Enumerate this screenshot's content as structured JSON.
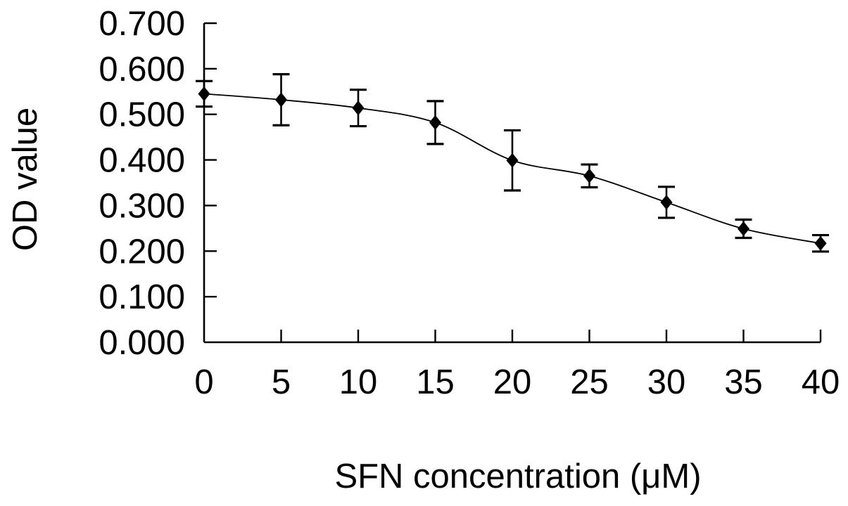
{
  "page": {
    "background": "#ffffff",
    "text_color": "#000000"
  },
  "chart_data": {
    "type": "line",
    "xlabel": "SFN concentration (μM)",
    "ylabel": "OD value",
    "x": [
      0,
      5,
      10,
      15,
      20,
      25,
      30,
      35,
      40
    ],
    "series": [
      {
        "name": "OD value",
        "values": [
          0.545,
          0.532,
          0.514,
          0.482,
          0.399,
          0.365,
          0.307,
          0.249,
          0.217
        ],
        "errors": [
          0.028,
          0.056,
          0.04,
          0.047,
          0.066,
          0.025,
          0.034,
          0.02,
          0.018
        ]
      }
    ],
    "xlim": [
      0,
      40
    ],
    "ylim": [
      0.0,
      0.7
    ],
    "xticks": [
      0,
      5,
      10,
      15,
      20,
      25,
      30,
      35,
      40
    ],
    "xtick_labels": [
      "0",
      "5",
      "10",
      "15",
      "20",
      "25",
      "30",
      "35",
      "40"
    ],
    "yticks": [
      0.0,
      0.1,
      0.2,
      0.3,
      0.4,
      0.5,
      0.6,
      0.7
    ],
    "ytick_labels": [
      "0.000",
      "0.100",
      "0.200",
      "0.300",
      "0.400",
      "0.500",
      "0.600",
      "0.700"
    ],
    "grid": false,
    "legend": "none",
    "marker": "diamond",
    "line_style": "smoothed",
    "colors": {
      "line": "#000000",
      "marker": "#000000",
      "error_bar": "#000000",
      "axis": "#000000",
      "text": "#000000",
      "background": "#ffffff"
    }
  }
}
